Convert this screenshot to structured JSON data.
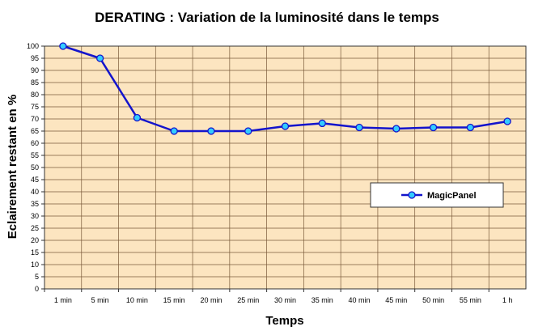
{
  "chart_data": {
    "type": "line",
    "title": "DERATING : Variation de la luminosité dans le temps",
    "xlabel": "Temps",
    "ylabel": "Eclairement restant en %",
    "categories": [
      "1 min",
      "5 min",
      "10 min",
      "15 min",
      "20 min",
      "25 min",
      "30 min",
      "35 min",
      "40 min",
      "45 min",
      "50 min",
      "55 min",
      "1 h"
    ],
    "series": [
      {
        "name": "MagicPanel",
        "values": [
          100,
          95,
          70.5,
          65,
          65,
          65,
          67,
          68.2,
          66.5,
          66,
          66.5,
          66.5,
          69
        ],
        "color": "#1414cc",
        "marker_color": "#33ccff"
      }
    ],
    "ylim": [
      0,
      100
    ],
    "y_ticks": [
      "0",
      "5",
      "10",
      "15",
      "20",
      "25",
      "30",
      "35",
      "40",
      "45",
      "50",
      "55",
      "60",
      "65",
      "70",
      "75",
      "80",
      "85",
      "90",
      "95",
      "100"
    ],
    "grid": true,
    "legend_position": "right",
    "plot_background": "#fce5c0",
    "grid_color": "#7a5a3a"
  }
}
